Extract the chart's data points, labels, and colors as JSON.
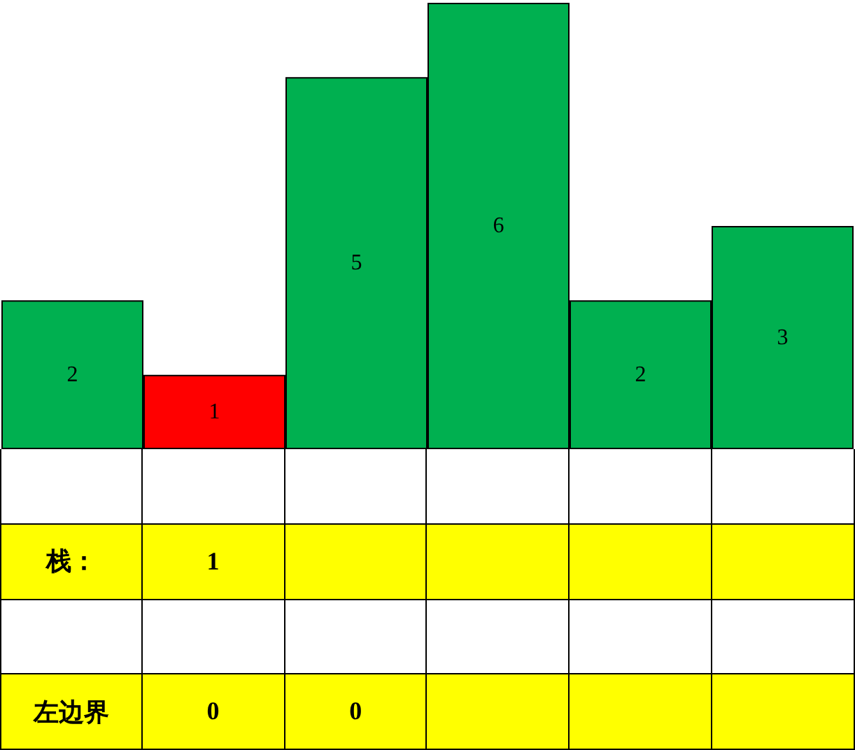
{
  "chart_data": [
    {
      "type": "bar",
      "categories": [
        null,
        null,
        null,
        null,
        null,
        null
      ],
      "values": [
        2,
        1,
        5,
        6,
        2,
        3
      ],
      "colors": [
        "#00b050",
        "#ff0000",
        "#00b050",
        "#00b050",
        "#00b050",
        "#00b050"
      ],
      "data_labels": true
    },
    {
      "type": "other",
      "annotations": [
        "栈：",
        "1",
        "左边界",
        "0",
        "0"
      ]
    }
  ]
}
